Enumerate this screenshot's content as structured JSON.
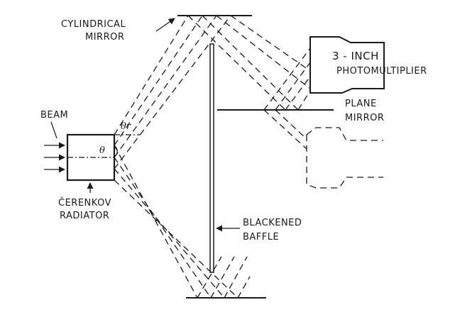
{
  "labels": {
    "cylindrical_mirror": [
      "CYLINDRICAL",
      "MIRROR"
    ],
    "photomultiplier": [
      "3 - INCH",
      "PHOTOMULTIPLIER"
    ],
    "plane_mirror": [
      "PLANE",
      "MIRROR"
    ],
    "beam": "BEAM",
    "theta_r": "θr",
    "theta": "θ",
    "radiator": [
      "ČERENKOV",
      "RADIATOR"
    ],
    "baffle": [
      "BLACKENED",
      "BAFFLE"
    ]
  }
}
